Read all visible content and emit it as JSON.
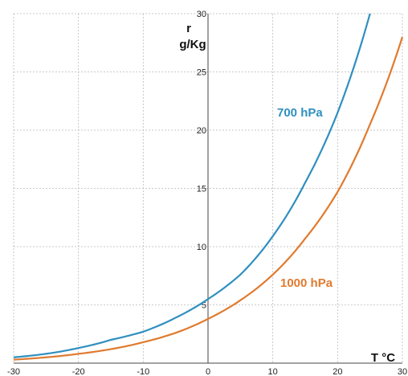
{
  "chart_data": {
    "type": "line",
    "title": "",
    "xlabel": "T °C",
    "ylabel_line1": "r",
    "ylabel_line2": "g/Kg",
    "xlim": [
      -30,
      30
    ],
    "ylim": [
      0,
      30
    ],
    "grid": true,
    "x_ticks": [
      -30,
      -20,
      -10,
      0,
      10,
      20,
      30
    ],
    "y_ticks": [
      5,
      10,
      15,
      20,
      25,
      30
    ],
    "x_tick_labels": [
      "-30",
      "-20",
      "-10",
      "0",
      "10",
      "20",
      "30"
    ],
    "y_tick_labels": [
      "5",
      "10",
      "15",
      "20",
      "25",
      "30"
    ],
    "x": [
      -30,
      -25,
      -20,
      -15,
      -10,
      -5,
      0,
      5,
      10,
      15,
      20,
      25,
      30
    ],
    "series": [
      {
        "name": "700 hPa",
        "color": "#2f8fbf",
        "values": [
          0.5,
          0.8,
          1.3,
          2.0,
          2.7,
          3.9,
          5.5,
          7.6,
          10.9,
          15.5,
          21.5,
          30.0,
          null
        ]
      },
      {
        "name": "1000 hPa",
        "color": "#e07a2e",
        "values": [
          0.3,
          0.5,
          0.8,
          1.2,
          1.8,
          2.6,
          3.8,
          5.4,
          7.6,
          10.7,
          14.7,
          20.5,
          28.0
        ]
      }
    ]
  }
}
